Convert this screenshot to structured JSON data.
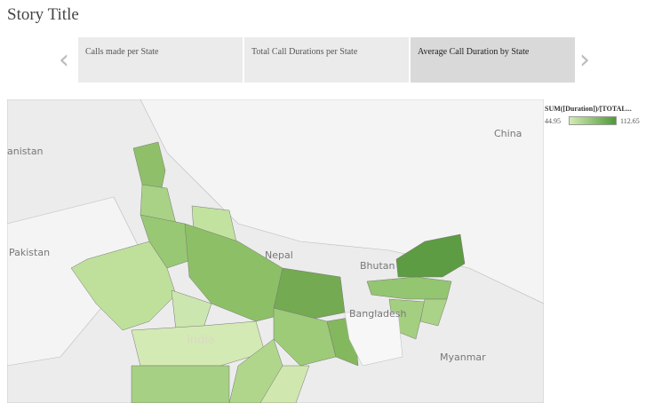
{
  "story": {
    "title": "Story Title",
    "tabs": [
      "Calls made per State",
      "Total Call Durations per State",
      "Average Call Duration by State"
    ],
    "active_tab": 2
  },
  "legend": {
    "title": "SUM([Duration])/[TOTAL...",
    "min": 44.95,
    "max": 112.65
  },
  "map": {
    "labels": [
      "anistan",
      "China",
      "Pakistan",
      "Nepal",
      "Bhutan",
      "Bangladesh",
      "India",
      "Myanmar"
    ]
  }
}
